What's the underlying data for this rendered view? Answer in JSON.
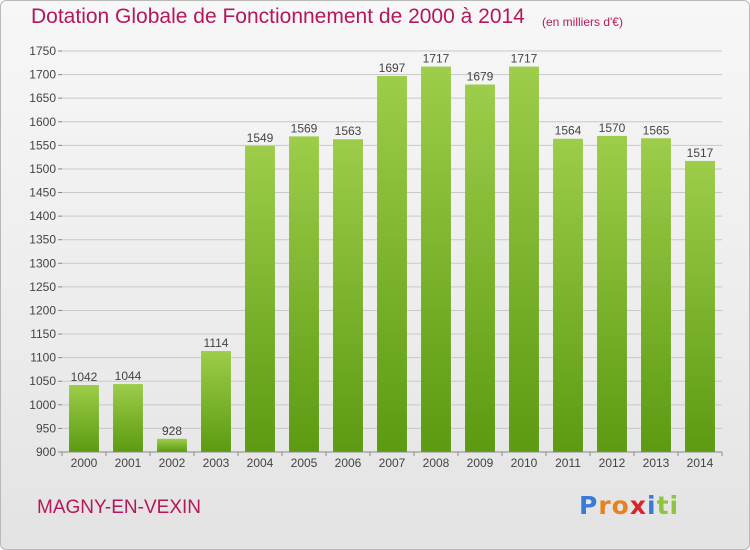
{
  "chart_data": {
    "type": "bar",
    "title": "Dotation Globale de Fonctionnement de 2000 à 2014",
    "subtitle": "(en milliers d'€)",
    "categories": [
      "2000",
      "2001",
      "2002",
      "2003",
      "2004",
      "2005",
      "2006",
      "2007",
      "2008",
      "2009",
      "2010",
      "2011",
      "2012",
      "2013",
      "2014"
    ],
    "values": [
      1042,
      1044,
      928,
      1114,
      1549,
      1569,
      1563,
      1697,
      1717,
      1679,
      1717,
      1564,
      1570,
      1565,
      1517
    ],
    "ylim": [
      900,
      1750
    ],
    "yticks": [
      900,
      950,
      1000,
      1050,
      1100,
      1150,
      1200,
      1250,
      1300,
      1350,
      1400,
      1450,
      1500,
      1550,
      1600,
      1650,
      1700,
      1750
    ],
    "grid": true,
    "bar_color_top": "#9dcd4a",
    "bar_color_bottom": "#5c9a12"
  },
  "footer": {
    "commune": "MAGNY-EN-VEXIN",
    "brand_letters": [
      "P",
      "r",
      "o",
      "x",
      "i",
      "t",
      "i"
    ],
    "brand_colors": [
      "#3a7bd5",
      "#e8821e",
      "#e8821e",
      "#d9232d",
      "#3a7bd5",
      "#8cc63e",
      "#8cc63e"
    ]
  }
}
